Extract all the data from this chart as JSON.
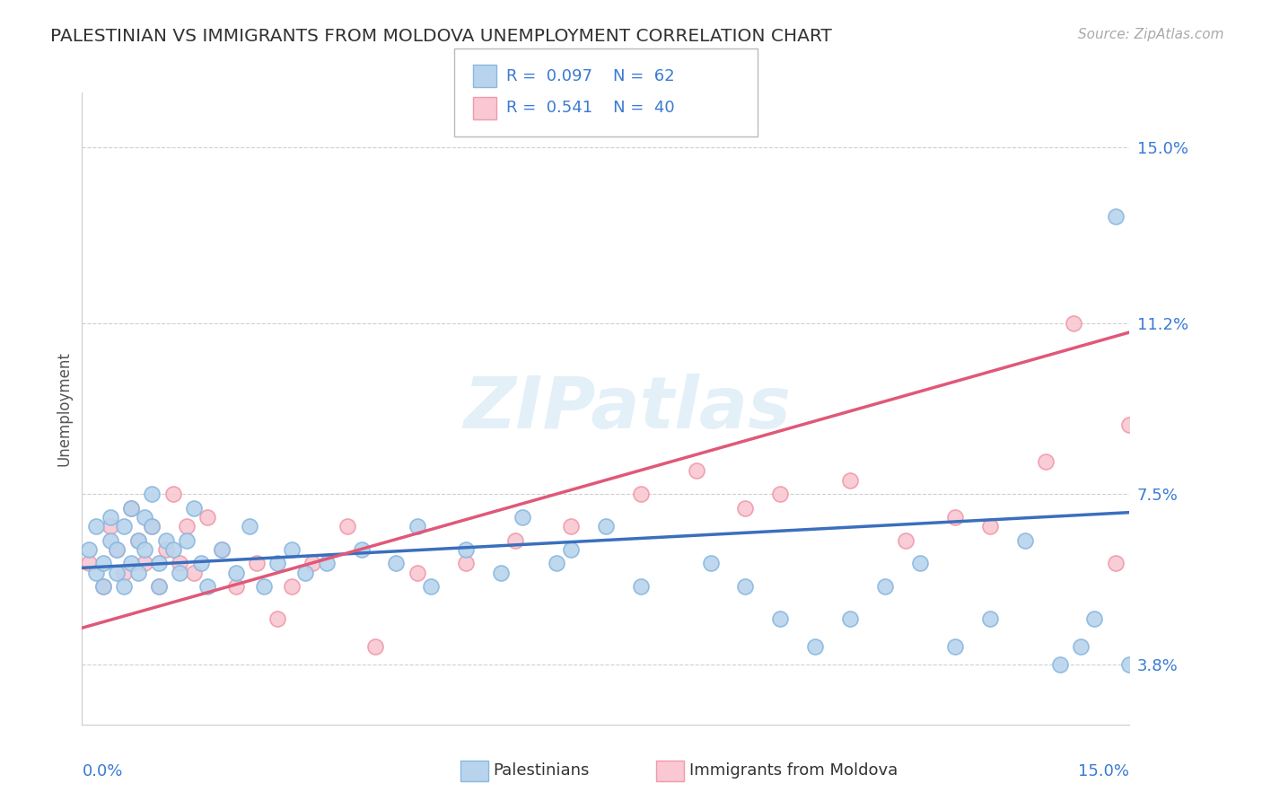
{
  "title": "PALESTINIAN VS IMMIGRANTS FROM MOLDOVA UNEMPLOYMENT CORRELATION CHART",
  "source": "Source: ZipAtlas.com",
  "ylabel": "Unemployment",
  "yticks": [
    0.038,
    0.075,
    0.112,
    0.15
  ],
  "ytick_labels": [
    "3.8%",
    "7.5%",
    "11.2%",
    "15.0%"
  ],
  "xmin": 0.0,
  "xmax": 0.15,
  "ymin": 0.025,
  "ymax": 0.162,
  "blue_line_y0": 0.059,
  "blue_line_y1": 0.071,
  "pink_line_y0": 0.046,
  "pink_line_y1": 0.11,
  "series": [
    {
      "name": "Palestinians",
      "R": "0.097",
      "N": "62",
      "marker_color": "#b8d4ed",
      "marker_edge": "#89b8e0",
      "line_color": "#3a6fbd"
    },
    {
      "name": "Immigrants from Moldova",
      "R": "0.541",
      "N": "40",
      "marker_color": "#f9c8d2",
      "marker_edge": "#f09aaa",
      "line_color": "#e05878"
    }
  ],
  "watermark": "ZIPatlas",
  "title_color": "#333333",
  "axis_label_color": "#3a7ad4",
  "grid_color": "#d0d0d0",
  "background_color": "#ffffff",
  "palestinians_x": [
    0.001,
    0.002,
    0.002,
    0.003,
    0.003,
    0.004,
    0.004,
    0.005,
    0.005,
    0.006,
    0.006,
    0.007,
    0.007,
    0.008,
    0.008,
    0.009,
    0.009,
    0.01,
    0.01,
    0.011,
    0.011,
    0.012,
    0.013,
    0.014,
    0.015,
    0.016,
    0.017,
    0.018,
    0.02,
    0.022,
    0.024,
    0.026,
    0.028,
    0.03,
    0.032,
    0.035,
    0.04,
    0.045,
    0.048,
    0.05,
    0.055,
    0.06,
    0.063,
    0.068,
    0.07,
    0.075,
    0.08,
    0.09,
    0.095,
    0.1,
    0.105,
    0.11,
    0.115,
    0.12,
    0.125,
    0.13,
    0.135,
    0.14,
    0.143,
    0.145,
    0.148,
    0.15
  ],
  "palestinians_y": [
    0.063,
    0.068,
    0.058,
    0.06,
    0.055,
    0.065,
    0.07,
    0.058,
    0.063,
    0.055,
    0.068,
    0.06,
    0.072,
    0.065,
    0.058,
    0.07,
    0.063,
    0.068,
    0.075,
    0.06,
    0.055,
    0.065,
    0.063,
    0.058,
    0.065,
    0.072,
    0.06,
    0.055,
    0.063,
    0.058,
    0.068,
    0.055,
    0.06,
    0.063,
    0.058,
    0.06,
    0.063,
    0.06,
    0.068,
    0.055,
    0.063,
    0.058,
    0.07,
    0.06,
    0.063,
    0.068,
    0.055,
    0.06,
    0.055,
    0.048,
    0.042,
    0.048,
    0.055,
    0.06,
    0.042,
    0.048,
    0.065,
    0.038,
    0.042,
    0.048,
    0.135,
    0.038
  ],
  "moldova_x": [
    0.001,
    0.003,
    0.004,
    0.005,
    0.006,
    0.007,
    0.008,
    0.009,
    0.01,
    0.011,
    0.012,
    0.013,
    0.014,
    0.015,
    0.016,
    0.018,
    0.02,
    0.022,
    0.025,
    0.028,
    0.03,
    0.033,
    0.038,
    0.042,
    0.048,
    0.055,
    0.062,
    0.07,
    0.08,
    0.088,
    0.095,
    0.1,
    0.11,
    0.118,
    0.125,
    0.13,
    0.138,
    0.142,
    0.148,
    0.15
  ],
  "moldova_y": [
    0.06,
    0.055,
    0.068,
    0.063,
    0.058,
    0.072,
    0.065,
    0.06,
    0.068,
    0.055,
    0.063,
    0.075,
    0.06,
    0.068,
    0.058,
    0.07,
    0.063,
    0.055,
    0.06,
    0.048,
    0.055,
    0.06,
    0.068,
    0.042,
    0.058,
    0.06,
    0.065,
    0.068,
    0.075,
    0.08,
    0.072,
    0.075,
    0.078,
    0.065,
    0.07,
    0.068,
    0.082,
    0.112,
    0.06,
    0.09
  ]
}
